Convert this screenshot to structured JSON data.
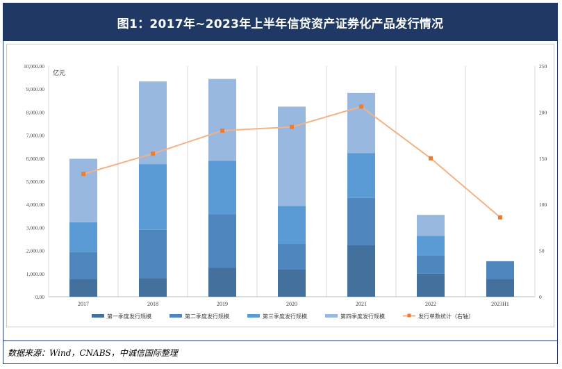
{
  "title": "图1：2017年~2023年上半年信贷资产证券化产品发行情况",
  "source": "数据来源：Wind，CNABS，中诚信国际整理",
  "chart_data": {
    "type": "bar",
    "stacked": true,
    "unit_label": "亿元",
    "categories": [
      "2017",
      "2018",
      "2019",
      "2020",
      "2021",
      "2022",
      "2023H1"
    ],
    "y_left": {
      "range": [
        0,
        10000
      ],
      "ticks": [
        "0.00",
        "1,000.00",
        "2,000.00",
        "3,000.00",
        "4,000.00",
        "5,000.00",
        "6,000.00",
        "7,000.00",
        "8,000.00",
        "9,000.00",
        "10,000.00"
      ]
    },
    "y_right": {
      "range": [
        0,
        250
      ],
      "ticks": [
        "0",
        "50",
        "100",
        "150",
        "200",
        "250"
      ]
    },
    "series": [
      {
        "name": "第一季度发行规模",
        "color": "#44709e",
        "values": [
          780,
          800,
          1250,
          1200,
          2230,
          1000,
          770
        ]
      },
      {
        "name": "第二季度发行规模",
        "color": "#4f86bd",
        "values": [
          1150,
          2100,
          2320,
          1090,
          2050,
          800,
          770
        ]
      },
      {
        "name": "第三季度发行规模",
        "color": "#5b9bd5",
        "values": [
          1300,
          2850,
          2320,
          1650,
          1940,
          840,
          0
        ]
      },
      {
        "name": "第四季度发行规模",
        "color": "#98b8e0",
        "values": [
          2750,
          3580,
          3550,
          4300,
          2610,
          910,
          0
        ]
      }
    ],
    "line": {
      "name": "发行单数统计（右轴）",
      "color": "#f4b183",
      "marker_color": "#ed7d31",
      "values": [
        133,
        155,
        180,
        184,
        206,
        150,
        86
      ]
    },
    "grid": "vertical",
    "legend": "bottom"
  }
}
